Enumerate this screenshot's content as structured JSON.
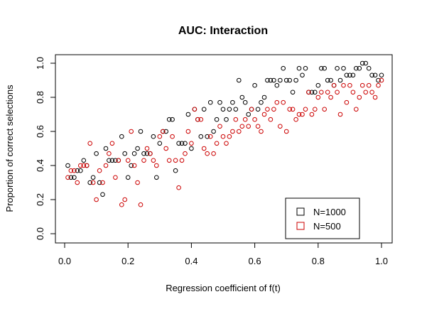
{
  "chart_data": {
    "type": "scatter",
    "title": "AUC: Interaction",
    "xlabel": "Regression coefficient of f(t)",
    "ylabel": "Proportion of correct selections",
    "xlim": [
      0,
      1
    ],
    "ylim": [
      0,
      1
    ],
    "xticks": [
      "0.0",
      "0.2",
      "0.4",
      "0.6",
      "0.8",
      "1.0"
    ],
    "yticks": [
      "0.0",
      "0.2",
      "0.4",
      "0.6",
      "0.8",
      "1.0"
    ],
    "grid": false,
    "legend_position": "bottom-right",
    "marker": "open-circle",
    "series": [
      {
        "name": "N=1000",
        "color": "#000000",
        "x": [
          0.01,
          0.02,
          0.03,
          0.04,
          0.05,
          0.06,
          0.07,
          0.08,
          0.09,
          0.1,
          0.11,
          0.12,
          0.13,
          0.14,
          0.15,
          0.16,
          0.17,
          0.18,
          0.19,
          0.2,
          0.21,
          0.22,
          0.23,
          0.24,
          0.25,
          0.26,
          0.27,
          0.28,
          0.29,
          0.3,
          0.31,
          0.32,
          0.33,
          0.34,
          0.35,
          0.36,
          0.37,
          0.38,
          0.39,
          0.4,
          0.41,
          0.42,
          0.43,
          0.44,
          0.45,
          0.46,
          0.47,
          0.48,
          0.49,
          0.5,
          0.51,
          0.52,
          0.53,
          0.54,
          0.55,
          0.56,
          0.57,
          0.58,
          0.59,
          0.6,
          0.61,
          0.62,
          0.63,
          0.64,
          0.65,
          0.66,
          0.67,
          0.68,
          0.69,
          0.7,
          0.71,
          0.72,
          0.73,
          0.74,
          0.75,
          0.76,
          0.77,
          0.78,
          0.79,
          0.8,
          0.81,
          0.82,
          0.83,
          0.84,
          0.85,
          0.86,
          0.87,
          0.88,
          0.89,
          0.9,
          0.91,
          0.92,
          0.93,
          0.94,
          0.95,
          0.96,
          0.97,
          0.98,
          0.99,
          1.0
        ],
        "y": [
          0.4,
          0.33,
          0.33,
          0.37,
          0.37,
          0.43,
          0.4,
          0.3,
          0.33,
          0.47,
          0.3,
          0.23,
          0.5,
          0.43,
          0.43,
          0.43,
          0.43,
          0.57,
          0.47,
          0.33,
          0.4,
          0.47,
          0.5,
          0.6,
          0.47,
          0.47,
          0.47,
          0.57,
          0.33,
          0.53,
          0.6,
          0.6,
          0.67,
          0.67,
          0.37,
          0.53,
          0.53,
          0.53,
          0.7,
          0.5,
          0.73,
          0.67,
          0.57,
          0.73,
          0.57,
          0.77,
          0.6,
          0.67,
          0.77,
          0.73,
          0.67,
          0.73,
          0.77,
          0.73,
          0.9,
          0.8,
          0.77,
          0.7,
          0.73,
          0.87,
          0.73,
          0.77,
          0.8,
          0.9,
          0.9,
          0.9,
          0.87,
          0.9,
          0.97,
          0.9,
          0.9,
          0.83,
          0.9,
          0.97,
          0.93,
          0.97,
          0.83,
          0.83,
          0.83,
          0.87,
          0.97,
          0.97,
          0.9,
          0.9,
          0.87,
          0.97,
          0.9,
          0.97,
          0.93,
          0.93,
          0.93,
          0.97,
          0.97,
          1.0,
          1.0,
          0.97,
          0.93,
          0.93,
          0.9,
          0.93
        ]
      },
      {
        "name": "N=500",
        "color": "#cc0000",
        "x": [
          0.01,
          0.02,
          0.03,
          0.04,
          0.05,
          0.06,
          0.07,
          0.08,
          0.09,
          0.1,
          0.11,
          0.12,
          0.13,
          0.14,
          0.15,
          0.16,
          0.17,
          0.18,
          0.19,
          0.2,
          0.21,
          0.22,
          0.23,
          0.24,
          0.25,
          0.26,
          0.27,
          0.28,
          0.29,
          0.3,
          0.31,
          0.32,
          0.33,
          0.34,
          0.35,
          0.36,
          0.37,
          0.38,
          0.39,
          0.4,
          0.41,
          0.42,
          0.43,
          0.44,
          0.45,
          0.46,
          0.47,
          0.48,
          0.49,
          0.5,
          0.51,
          0.52,
          0.53,
          0.54,
          0.55,
          0.56,
          0.57,
          0.58,
          0.59,
          0.6,
          0.61,
          0.62,
          0.63,
          0.64,
          0.65,
          0.66,
          0.67,
          0.68,
          0.69,
          0.7,
          0.71,
          0.72,
          0.73,
          0.74,
          0.75,
          0.76,
          0.77,
          0.78,
          0.79,
          0.8,
          0.81,
          0.82,
          0.83,
          0.84,
          0.85,
          0.86,
          0.87,
          0.88,
          0.89,
          0.9,
          0.91,
          0.92,
          0.93,
          0.94,
          0.95,
          0.96,
          0.97,
          0.98,
          0.99,
          1.0
        ],
        "y": [
          0.33,
          0.37,
          0.37,
          0.3,
          0.4,
          0.4,
          0.4,
          0.53,
          0.3,
          0.2,
          0.37,
          0.3,
          0.4,
          0.47,
          0.53,
          0.33,
          0.43,
          0.17,
          0.2,
          0.43,
          0.6,
          0.4,
          0.3,
          0.17,
          0.43,
          0.5,
          0.47,
          0.43,
          0.4,
          0.57,
          0.6,
          0.5,
          0.43,
          0.57,
          0.43,
          0.27,
          0.43,
          0.47,
          0.6,
          0.53,
          0.73,
          0.67,
          0.67,
          0.5,
          0.47,
          0.57,
          0.47,
          0.53,
          0.63,
          0.57,
          0.53,
          0.57,
          0.6,
          0.67,
          0.6,
          0.63,
          0.67,
          0.63,
          0.73,
          0.67,
          0.63,
          0.6,
          0.7,
          0.73,
          0.67,
          0.73,
          0.77,
          0.63,
          0.77,
          0.6,
          0.73,
          0.73,
          0.67,
          0.7,
          0.7,
          0.73,
          0.83,
          0.7,
          0.73,
          0.8,
          0.83,
          0.73,
          0.83,
          0.8,
          0.87,
          0.83,
          0.7,
          0.87,
          0.77,
          0.87,
          0.83,
          0.73,
          0.8,
          0.87,
          0.83,
          0.87,
          0.83,
          0.8,
          0.87,
          0.9
        ]
      }
    ]
  }
}
